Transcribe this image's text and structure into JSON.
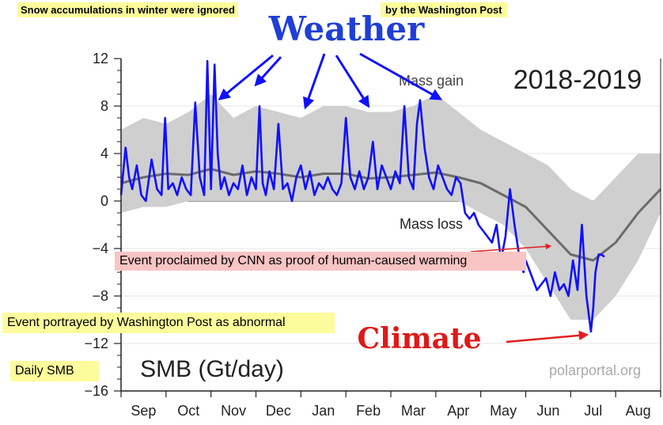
{
  "annotations": {
    "top_left": "Snow accumulations in winter were ignored",
    "top_right": "by the Washington Post",
    "weather": "Weather",
    "climate": "Climate",
    "cnn": "Event proclaimed by CNN as proof of human-caused warming",
    "wapo": "Event portrayed by Washington Post as abnormal",
    "daily_smb": "Daily SMB"
  },
  "colors": {
    "series": "#1010ff",
    "mean": "#6b6b6b",
    "band": "#cfcfcf",
    "arrow_blue": "#1010ff",
    "arrow_red": "#e02020",
    "weather_text": "#1f3fd6",
    "climate_text": "#e01818"
  },
  "chart_data": {
    "type": "line",
    "title": "2018-2019",
    "ylabel": "SMB (Gt/day)",
    "watermark": "polarportal.org",
    "inner_labels": [
      "Mass gain",
      "Mass loss"
    ],
    "ylim": [
      -16,
      12
    ],
    "yticks": [
      12,
      8,
      4,
      0,
      -4,
      -8,
      -12,
      -16
    ],
    "xlim": [
      0,
      12
    ],
    "months": [
      "Sep",
      "Oct",
      "Nov",
      "Dec",
      "Jan",
      "Feb",
      "Mar",
      "Apr",
      "May",
      "Jun",
      "Jul",
      "Aug"
    ],
    "series": [
      {
        "name": "Daily SMB",
        "x": [
          0.0,
          0.1,
          0.18,
          0.25,
          0.35,
          0.45,
          0.55,
          0.68,
          0.8,
          0.9,
          0.98,
          1.05,
          1.15,
          1.25,
          1.35,
          1.45,
          1.55,
          1.65,
          1.75,
          1.85,
          1.92,
          2.0,
          2.08,
          2.15,
          2.22,
          2.3,
          2.4,
          2.5,
          2.6,
          2.7,
          2.8,
          2.9,
          3.0,
          3.08,
          3.15,
          3.22,
          3.3,
          3.4,
          3.5,
          3.6,
          3.7,
          3.8,
          3.9,
          4.0,
          4.1,
          4.2,
          4.3,
          4.4,
          4.5,
          4.6,
          4.7,
          4.8,
          4.9,
          5.0,
          5.1,
          5.2,
          5.3,
          5.4,
          5.5,
          5.6,
          5.7,
          5.8,
          5.9,
          6.0,
          6.1,
          6.2,
          6.3,
          6.4,
          6.5,
          6.58,
          6.65,
          6.75,
          6.85,
          6.95,
          7.05,
          7.15,
          7.25,
          7.35,
          7.45,
          7.55,
          7.65,
          7.75,
          7.85,
          7.95,
          8.05,
          8.15,
          8.25,
          8.35,
          8.45,
          8.55,
          8.65,
          8.75,
          8.85,
          8.95,
          9.0,
          9.05,
          9.15,
          9.25,
          9.35,
          9.45,
          9.55,
          9.65,
          9.75,
          9.85,
          9.95,
          10.05,
          10.15,
          10.25,
          10.35,
          10.45,
          10.5,
          10.55,
          10.62,
          10.68,
          10.75
        ],
        "y": [
          0.5,
          4.5,
          2.0,
          1.0,
          3.0,
          0.5,
          0.0,
          3.5,
          1.0,
          0.5,
          7.0,
          1.0,
          1.5,
          0.5,
          2.0,
          1.0,
          0.5,
          8.3,
          2.0,
          0.5,
          11.8,
          1.0,
          11.5,
          4.0,
          1.0,
          2.0,
          0.5,
          1.5,
          1.0,
          3.0,
          0.5,
          2.0,
          1.0,
          8.0,
          1.5,
          0.5,
          2.5,
          1.0,
          6.5,
          1.0,
          1.5,
          0.0,
          2.0,
          3.0,
          1.0,
          2.5,
          0.5,
          1.5,
          1.0,
          2.0,
          1.0,
          0.5,
          1.5,
          7.0,
          2.0,
          1.0,
          2.5,
          1.0,
          2.0,
          5.0,
          1.0,
          3.0,
          2.0,
          1.0,
          2.5,
          1.5,
          8.0,
          2.0,
          1.0,
          6.5,
          8.5,
          4.5,
          2.0,
          1.0,
          3.0,
          2.0,
          1.0,
          0.5,
          2.0,
          1.5,
          -1.0,
          -1.5,
          -1.0,
          -2.0,
          -2.5,
          -3.0,
          -3.5,
          -2.0,
          -5.0,
          -3.0,
          1.0,
          -2.0,
          -4.5,
          -6.0,
          -5.0,
          -5.5,
          -6.5,
          -7.5,
          -7.0,
          -6.5,
          -8.0,
          -6.0,
          -7.5,
          -7.0,
          -8.0,
          -5.0,
          -7.5,
          -2.0,
          -8.0,
          -11.0,
          -9.0,
          -6.0,
          -4.5,
          -4.5,
          -4.7
        ]
      },
      {
        "name": "Mean",
        "x": [
          0,
          0.5,
          1,
          1.5,
          2,
          2.5,
          3,
          3.5,
          4,
          4.5,
          5,
          5.5,
          6,
          6.5,
          7,
          7.5,
          8,
          8.5,
          9,
          9.5,
          10,
          10.5,
          11,
          11.5,
          12
        ],
        "y": [
          1.5,
          2.0,
          2.3,
          2.2,
          2.7,
          2.2,
          2.5,
          2.3,
          2.0,
          2.3,
          2.3,
          1.9,
          2.0,
          2.2,
          2.4,
          2.0,
          1.5,
          0.5,
          -0.5,
          -2.5,
          -4.5,
          -5.0,
          -3.5,
          -1.0,
          1.0
        ]
      },
      {
        "name": "Range",
        "x": [
          0,
          0.5,
          1,
          1.5,
          2,
          2.5,
          3,
          3.5,
          4,
          4.5,
          5,
          5.5,
          6,
          6.5,
          7,
          7.5,
          8,
          8.5,
          9,
          9.5,
          10,
          10.5,
          11,
          11.5,
          12
        ],
        "upper": [
          6,
          7,
          6.5,
          7.5,
          9,
          7,
          8,
          7.5,
          7,
          8,
          8,
          7.5,
          7.5,
          8,
          9,
          7.5,
          6,
          5,
          4,
          3,
          1,
          0,
          2,
          4,
          4
        ],
        "lower": [
          -1,
          -0.5,
          -0.5,
          0,
          0,
          0,
          0,
          0,
          0,
          0,
          0,
          0,
          0,
          0,
          0,
          0,
          -1,
          -2,
          -4,
          -7,
          -10,
          -10,
          -8,
          -5,
          -1
        ]
      }
    ]
  }
}
